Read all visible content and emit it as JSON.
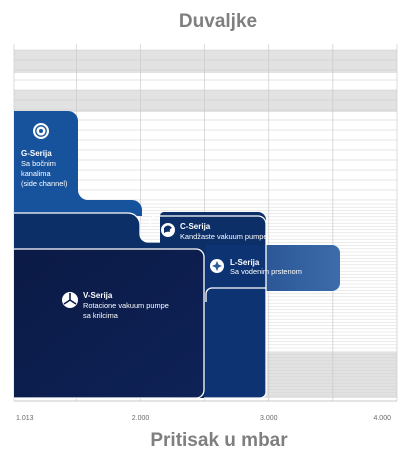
{
  "chart_data": {
    "type": "range-bar",
    "title": "Duvaljke",
    "xlabel": "Pritisak u mbar",
    "x_ticks": [
      "1.013",
      "2.000",
      "3.000",
      "4.000"
    ],
    "x_tick_values": [
      1013,
      2000,
      3000,
      4000
    ],
    "xlim": [
      1013,
      4000
    ],
    "grid": true,
    "series": [
      {
        "key": "g",
        "name": "G-Serija",
        "lines": [
          "Sa bočnim",
          "kanalima",
          "(side channel)"
        ],
        "pressure_min": 1013,
        "pressure_max": 1500,
        "color": "#17529c",
        "icon": "side-channel-icon"
      },
      {
        "key": "c",
        "name": "C-Serija",
        "lines": [
          "Kandžaste vakuum pumpe"
        ],
        "pressure_min": 1013,
        "pressure_max": 3000,
        "color": "#0c2f68",
        "icon": "claw-icon"
      },
      {
        "key": "l",
        "name": "L-Serija",
        "lines": [
          "Sa vodenim prstenom"
        ],
        "pressure_min": 2500,
        "pressure_max": 3600,
        "color": "#2c5b9b",
        "icon": "liquid-ring-icon"
      },
      {
        "key": "v",
        "name": "V-Serija",
        "lines": [
          "Rotacione vakuum pumpe",
          "sa krilcima"
        ],
        "pressure_min": 1013,
        "pressure_max": 2500,
        "color": "#0c1b4a",
        "icon": "vane-icon"
      }
    ]
  }
}
